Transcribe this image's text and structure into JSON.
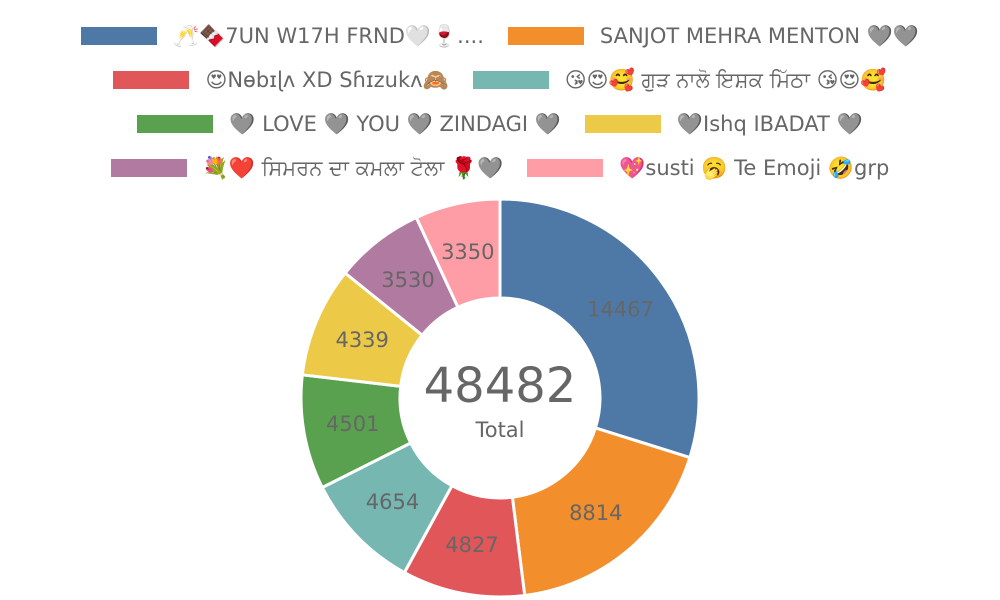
{
  "chart_data": {
    "type": "pie",
    "variant": "doughnut",
    "labels": [
      "🥂🍫7UN W17H FRND🤍🍷....",
      "SANJOT MEHRA MENTON 🩶🩶",
      "😍Nɵbɪɭʌ XD Sɦɪzukʌ🙈",
      "😘😍🥰 ਗੁੜ ਨਾਲੋ ਇਸ਼ਕ ਮਿੱਠਾ 😘😍🥰",
      "🩶 LOVE 🩶 YOU 🩶 ZINDAGI 🩶",
      "🩶Ishq IBADAT 🩶",
      "💐❤️ ਸਿਮਰਨ ਦਾ ਕਮਲਾ ਟੋਲਾ 🌹🩶",
      "💖susti 🥱 Te Emoji 🤣grp"
    ],
    "values": [
      14467,
      8814,
      4827,
      4654,
      4501,
      4339,
      3530,
      3350
    ],
    "colors": [
      "#4e79a7",
      "#f28e2b",
      "#e15759",
      "#76b7b2",
      "#59a14f",
      "#edc948",
      "#b07aa1",
      "#ff9da7"
    ],
    "center_total": "48482",
    "center_caption": "Total",
    "legend_position": "top"
  }
}
